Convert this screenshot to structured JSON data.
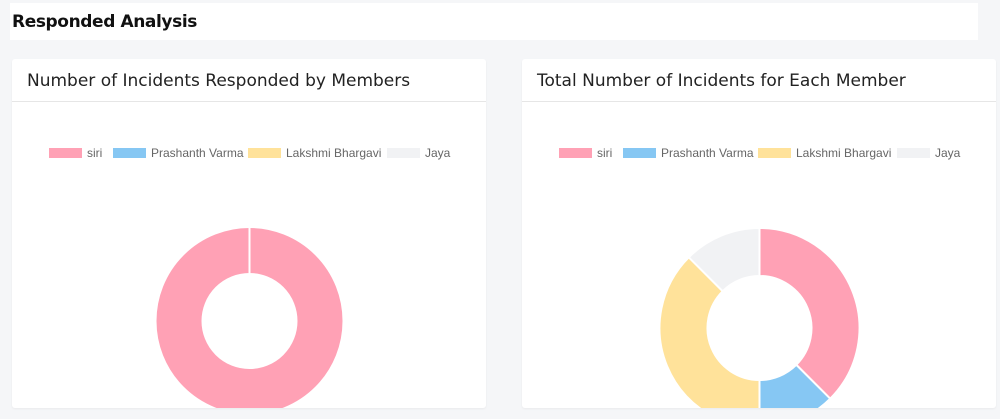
{
  "page": {
    "title": "Responded Analysis"
  },
  "cards": [
    {
      "title": "Number of Incidents Responded by Members"
    },
    {
      "title": "Total Number of Incidents for Each Member"
    }
  ],
  "colors": {
    "siri": "#ffa1b5",
    "prashanth": "#86c7f3",
    "lakshmi": "#ffe29a",
    "jaya": "#f1f2f4"
  },
  "chart_data": [
    {
      "type": "doughnut",
      "title": "Number of Incidents Responded by Members",
      "categories": [
        "siri",
        "Prashanth Varma",
        "Lakshmi Bhargavi",
        "Jaya"
      ],
      "values": [
        1,
        0,
        0,
        0
      ],
      "legend": "top"
    },
    {
      "type": "doughnut",
      "title": "Total Number of Incidents for Each Member",
      "categories": [
        "siri",
        "Prashanth Varma",
        "Lakshmi Bhargavi",
        "Jaya"
      ],
      "values": [
        3,
        1,
        3,
        1
      ],
      "legend": "top"
    }
  ]
}
